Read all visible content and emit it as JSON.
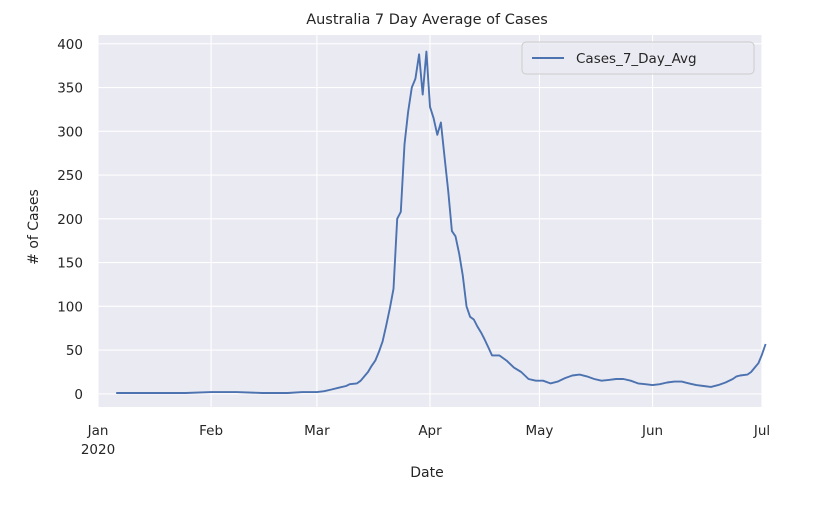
{
  "chart_data": {
    "type": "line",
    "title": "Australia 7 Day Average of Cases",
    "xlabel": "Date",
    "ylabel": "# of Cases",
    "xlim": [
      "2020-01-01",
      "2020-07-01"
    ],
    "ylim": [
      -15,
      410
    ],
    "grid": true,
    "legend_position": "top-right",
    "x_ticks": [
      {
        "date": "2020-01-01",
        "label": "Jan",
        "sublabel": "2020"
      },
      {
        "date": "2020-02-01",
        "label": "Feb"
      },
      {
        "date": "2020-03-01",
        "label": "Mar"
      },
      {
        "date": "2020-04-01",
        "label": "Apr"
      },
      {
        "date": "2020-05-01",
        "label": "May"
      },
      {
        "date": "2020-06-01",
        "label": "Jun"
      },
      {
        "date": "2020-07-01",
        "label": "Jul"
      }
    ],
    "y_ticks": [
      0,
      50,
      100,
      150,
      200,
      250,
      300,
      350,
      400
    ],
    "series": [
      {
        "name": "Cases_7_Day_Avg",
        "color": "#4c72b0",
        "points": [
          [
            "2020-01-06",
            1
          ],
          [
            "2020-01-15",
            1
          ],
          [
            "2020-01-25",
            1
          ],
          [
            "2020-02-01",
            2
          ],
          [
            "2020-02-08",
            2
          ],
          [
            "2020-02-15",
            1
          ],
          [
            "2020-02-22",
            1
          ],
          [
            "2020-02-26",
            2
          ],
          [
            "2020-03-01",
            2
          ],
          [
            "2020-03-03",
            3
          ],
          [
            "2020-03-05",
            5
          ],
          [
            "2020-03-07",
            7
          ],
          [
            "2020-03-09",
            9
          ],
          [
            "2020-03-10",
            11
          ],
          [
            "2020-03-12",
            12
          ],
          [
            "2020-03-13",
            15
          ],
          [
            "2020-03-14",
            20
          ],
          [
            "2020-03-15",
            25
          ],
          [
            "2020-03-16",
            32
          ],
          [
            "2020-03-17",
            38
          ],
          [
            "2020-03-18",
            48
          ],
          [
            "2020-03-19",
            60
          ],
          [
            "2020-03-20",
            78
          ],
          [
            "2020-03-21",
            98
          ],
          [
            "2020-03-22",
            120
          ],
          [
            "2020-03-23",
            200
          ],
          [
            "2020-03-24",
            208
          ],
          [
            "2020-03-25",
            285
          ],
          [
            "2020-03-26",
            322
          ],
          [
            "2020-03-27",
            350
          ],
          [
            "2020-03-28",
            360
          ],
          [
            "2020-03-29",
            388
          ],
          [
            "2020-03-30",
            342
          ],
          [
            "2020-03-31",
            391
          ],
          [
            "2020-04-01",
            328
          ],
          [
            "2020-04-02",
            315
          ],
          [
            "2020-04-03",
            296
          ],
          [
            "2020-04-04",
            310
          ],
          [
            "2020-04-05",
            270
          ],
          [
            "2020-04-06",
            232
          ],
          [
            "2020-04-07",
            186
          ],
          [
            "2020-04-08",
            180
          ],
          [
            "2020-04-09",
            160
          ],
          [
            "2020-04-10",
            135
          ],
          [
            "2020-04-11",
            100
          ],
          [
            "2020-04-12",
            88
          ],
          [
            "2020-04-13",
            85
          ],
          [
            "2020-04-14",
            77
          ],
          [
            "2020-04-15",
            70
          ],
          [
            "2020-04-16",
            62
          ],
          [
            "2020-04-17",
            53
          ],
          [
            "2020-04-18",
            44
          ],
          [
            "2020-04-20",
            44
          ],
          [
            "2020-04-22",
            38
          ],
          [
            "2020-04-24",
            30
          ],
          [
            "2020-04-26",
            25
          ],
          [
            "2020-04-28",
            17
          ],
          [
            "2020-04-30",
            15
          ],
          [
            "2020-05-02",
            15
          ],
          [
            "2020-05-04",
            12
          ],
          [
            "2020-05-06",
            14
          ],
          [
            "2020-05-08",
            18
          ],
          [
            "2020-05-10",
            21
          ],
          [
            "2020-05-12",
            22
          ],
          [
            "2020-05-14",
            20
          ],
          [
            "2020-05-16",
            17
          ],
          [
            "2020-05-18",
            15
          ],
          [
            "2020-05-20",
            16
          ],
          [
            "2020-05-22",
            17
          ],
          [
            "2020-05-24",
            17
          ],
          [
            "2020-05-26",
            15
          ],
          [
            "2020-05-28",
            12
          ],
          [
            "2020-05-30",
            11
          ],
          [
            "2020-06-01",
            10
          ],
          [
            "2020-06-03",
            11
          ],
          [
            "2020-06-05",
            13
          ],
          [
            "2020-06-07",
            14
          ],
          [
            "2020-06-09",
            14
          ],
          [
            "2020-06-11",
            12
          ],
          [
            "2020-06-13",
            10
          ],
          [
            "2020-06-15",
            9
          ],
          [
            "2020-06-17",
            8
          ],
          [
            "2020-06-19",
            10
          ],
          [
            "2020-06-21",
            13
          ],
          [
            "2020-06-23",
            17
          ],
          [
            "2020-06-24",
            20
          ],
          [
            "2020-06-25",
            21
          ],
          [
            "2020-06-27",
            22
          ],
          [
            "2020-06-28",
            25
          ],
          [
            "2020-06-29",
            30
          ],
          [
            "2020-06-30",
            35
          ],
          [
            "2020-07-01",
            45
          ],
          [
            "2020-07-02",
            57
          ]
        ]
      }
    ]
  },
  "colors": {
    "plot_background": "#eaeaf2",
    "grid": "#ffffff",
    "text": "#262626"
  }
}
